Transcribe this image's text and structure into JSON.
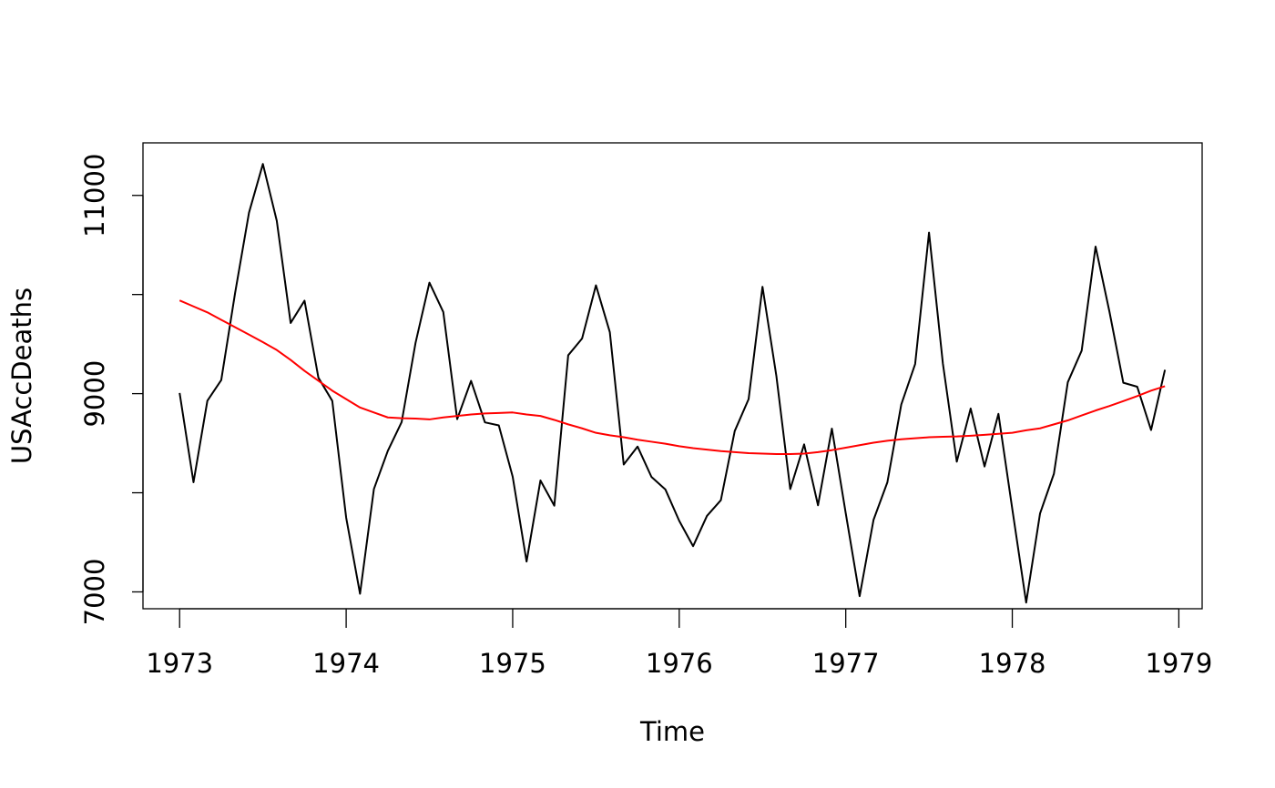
{
  "chart_data": {
    "type": "line",
    "title": "",
    "xlabel": "Time",
    "ylabel": "USAccDeaths",
    "xlim": [
      1972.78,
      1979.14
    ],
    "ylim": [
      6830,
      11530
    ],
    "x_ticks": [
      {
        "value": 1973,
        "label": "1973"
      },
      {
        "value": 1974,
        "label": "1974"
      },
      {
        "value": 1975,
        "label": "1975"
      },
      {
        "value": 1976,
        "label": "1976"
      },
      {
        "value": 1977,
        "label": "1977"
      },
      {
        "value": 1978,
        "label": "1978"
      },
      {
        "value": 1979,
        "label": "1979"
      }
    ],
    "y_ticks": [
      {
        "value": 7000,
        "label": "7000"
      },
      {
        "value": 8000,
        "label": ""
      },
      {
        "value": 9000,
        "label": "9000"
      },
      {
        "value": 10000,
        "label": ""
      },
      {
        "value": 11000,
        "label": "11000"
      }
    ],
    "grid": false,
    "x_start": 1973,
    "x_step": 0.0833333,
    "series": [
      {
        "color": "#000000",
        "values": [
          9007,
          8106,
          8928,
          9137,
          10017,
          10826,
          11317,
          10744,
          9713,
          9938,
          9161,
          8927,
          7750,
          6981,
          8038,
          8422,
          8714,
          9512,
          10120,
          9823,
          8743,
          9129,
          8710,
          8680,
          8162,
          7306,
          8124,
          7870,
          9387,
          9556,
          10093,
          9620,
          8285,
          8466,
          8160,
          8034,
          7717,
          7461,
          7767,
          7925,
          8623,
          8945,
          10078,
          9179,
          8037,
          8488,
          7874,
          8647,
          7792,
          6957,
          7726,
          8106,
          8890,
          9299,
          10625,
          9302,
          8314,
          8850,
          8265,
          8796,
          7836,
          6892,
          7791,
          8192,
          9115,
          9434,
          10484,
          9827,
          9110,
          9070,
          8633,
          9240
        ]
      },
      {
        "color": "#ff0000",
        "values": [
          9940,
          9880,
          9820,
          9745,
          9670,
          9595,
          9520,
          9440,
          9340,
          9230,
          9130,
          9030,
          8945,
          8860,
          8810,
          8760,
          8752,
          8748,
          8740,
          8760,
          8775,
          8790,
          8800,
          8805,
          8810,
          8790,
          8775,
          8735,
          8690,
          8650,
          8605,
          8580,
          8560,
          8535,
          8515,
          8495,
          8470,
          8450,
          8435,
          8420,
          8410,
          8400,
          8395,
          8390,
          8390,
          8395,
          8410,
          8430,
          8455,
          8480,
          8505,
          8525,
          8540,
          8550,
          8560,
          8565,
          8568,
          8575,
          8585,
          8595,
          8605,
          8630,
          8650,
          8690,
          8730,
          8780,
          8830,
          8875,
          8925,
          8975,
          9030,
          9075
        ]
      }
    ]
  }
}
